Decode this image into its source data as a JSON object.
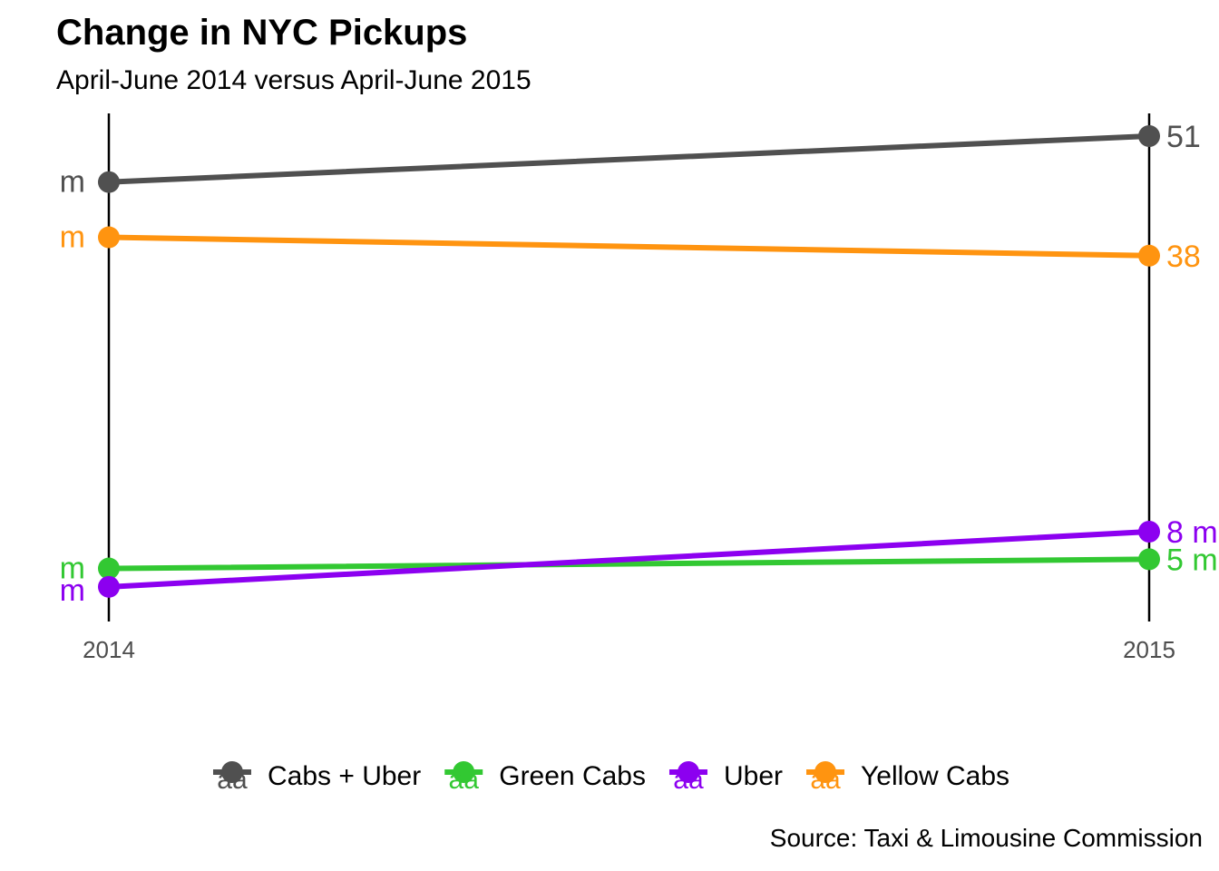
{
  "chart_data": {
    "type": "line",
    "title": "Change in NYC Pickups",
    "subtitle": "April-June 2014 versus April-June 2015",
    "caption": "Source: Taxi & Limousine Commission",
    "categories": [
      "2014",
      "2015"
    ],
    "xlabel": "",
    "ylabel": "",
    "grid": false,
    "legend_position": "bottom",
    "series": [
      {
        "name": "Cabs + Uber",
        "color": "#505050",
        "values": [
          46,
          51
        ],
        "labels": [
          "m",
          "51"
        ]
      },
      {
        "name": "Green Cabs",
        "color": "#32c832",
        "values": [
          4,
          5
        ],
        "labels": [
          "m",
          "5 m"
        ]
      },
      {
        "name": "Uber",
        "color": "#8c00f0",
        "values": [
          2,
          8
        ],
        "labels": [
          "m",
          "8 m"
        ]
      },
      {
        "name": "Yellow Cabs",
        "color": "#ff9410",
        "values": [
          40,
          38
        ],
        "labels": [
          "m",
          "38"
        ]
      }
    ],
    "legend_key_text": "a"
  }
}
